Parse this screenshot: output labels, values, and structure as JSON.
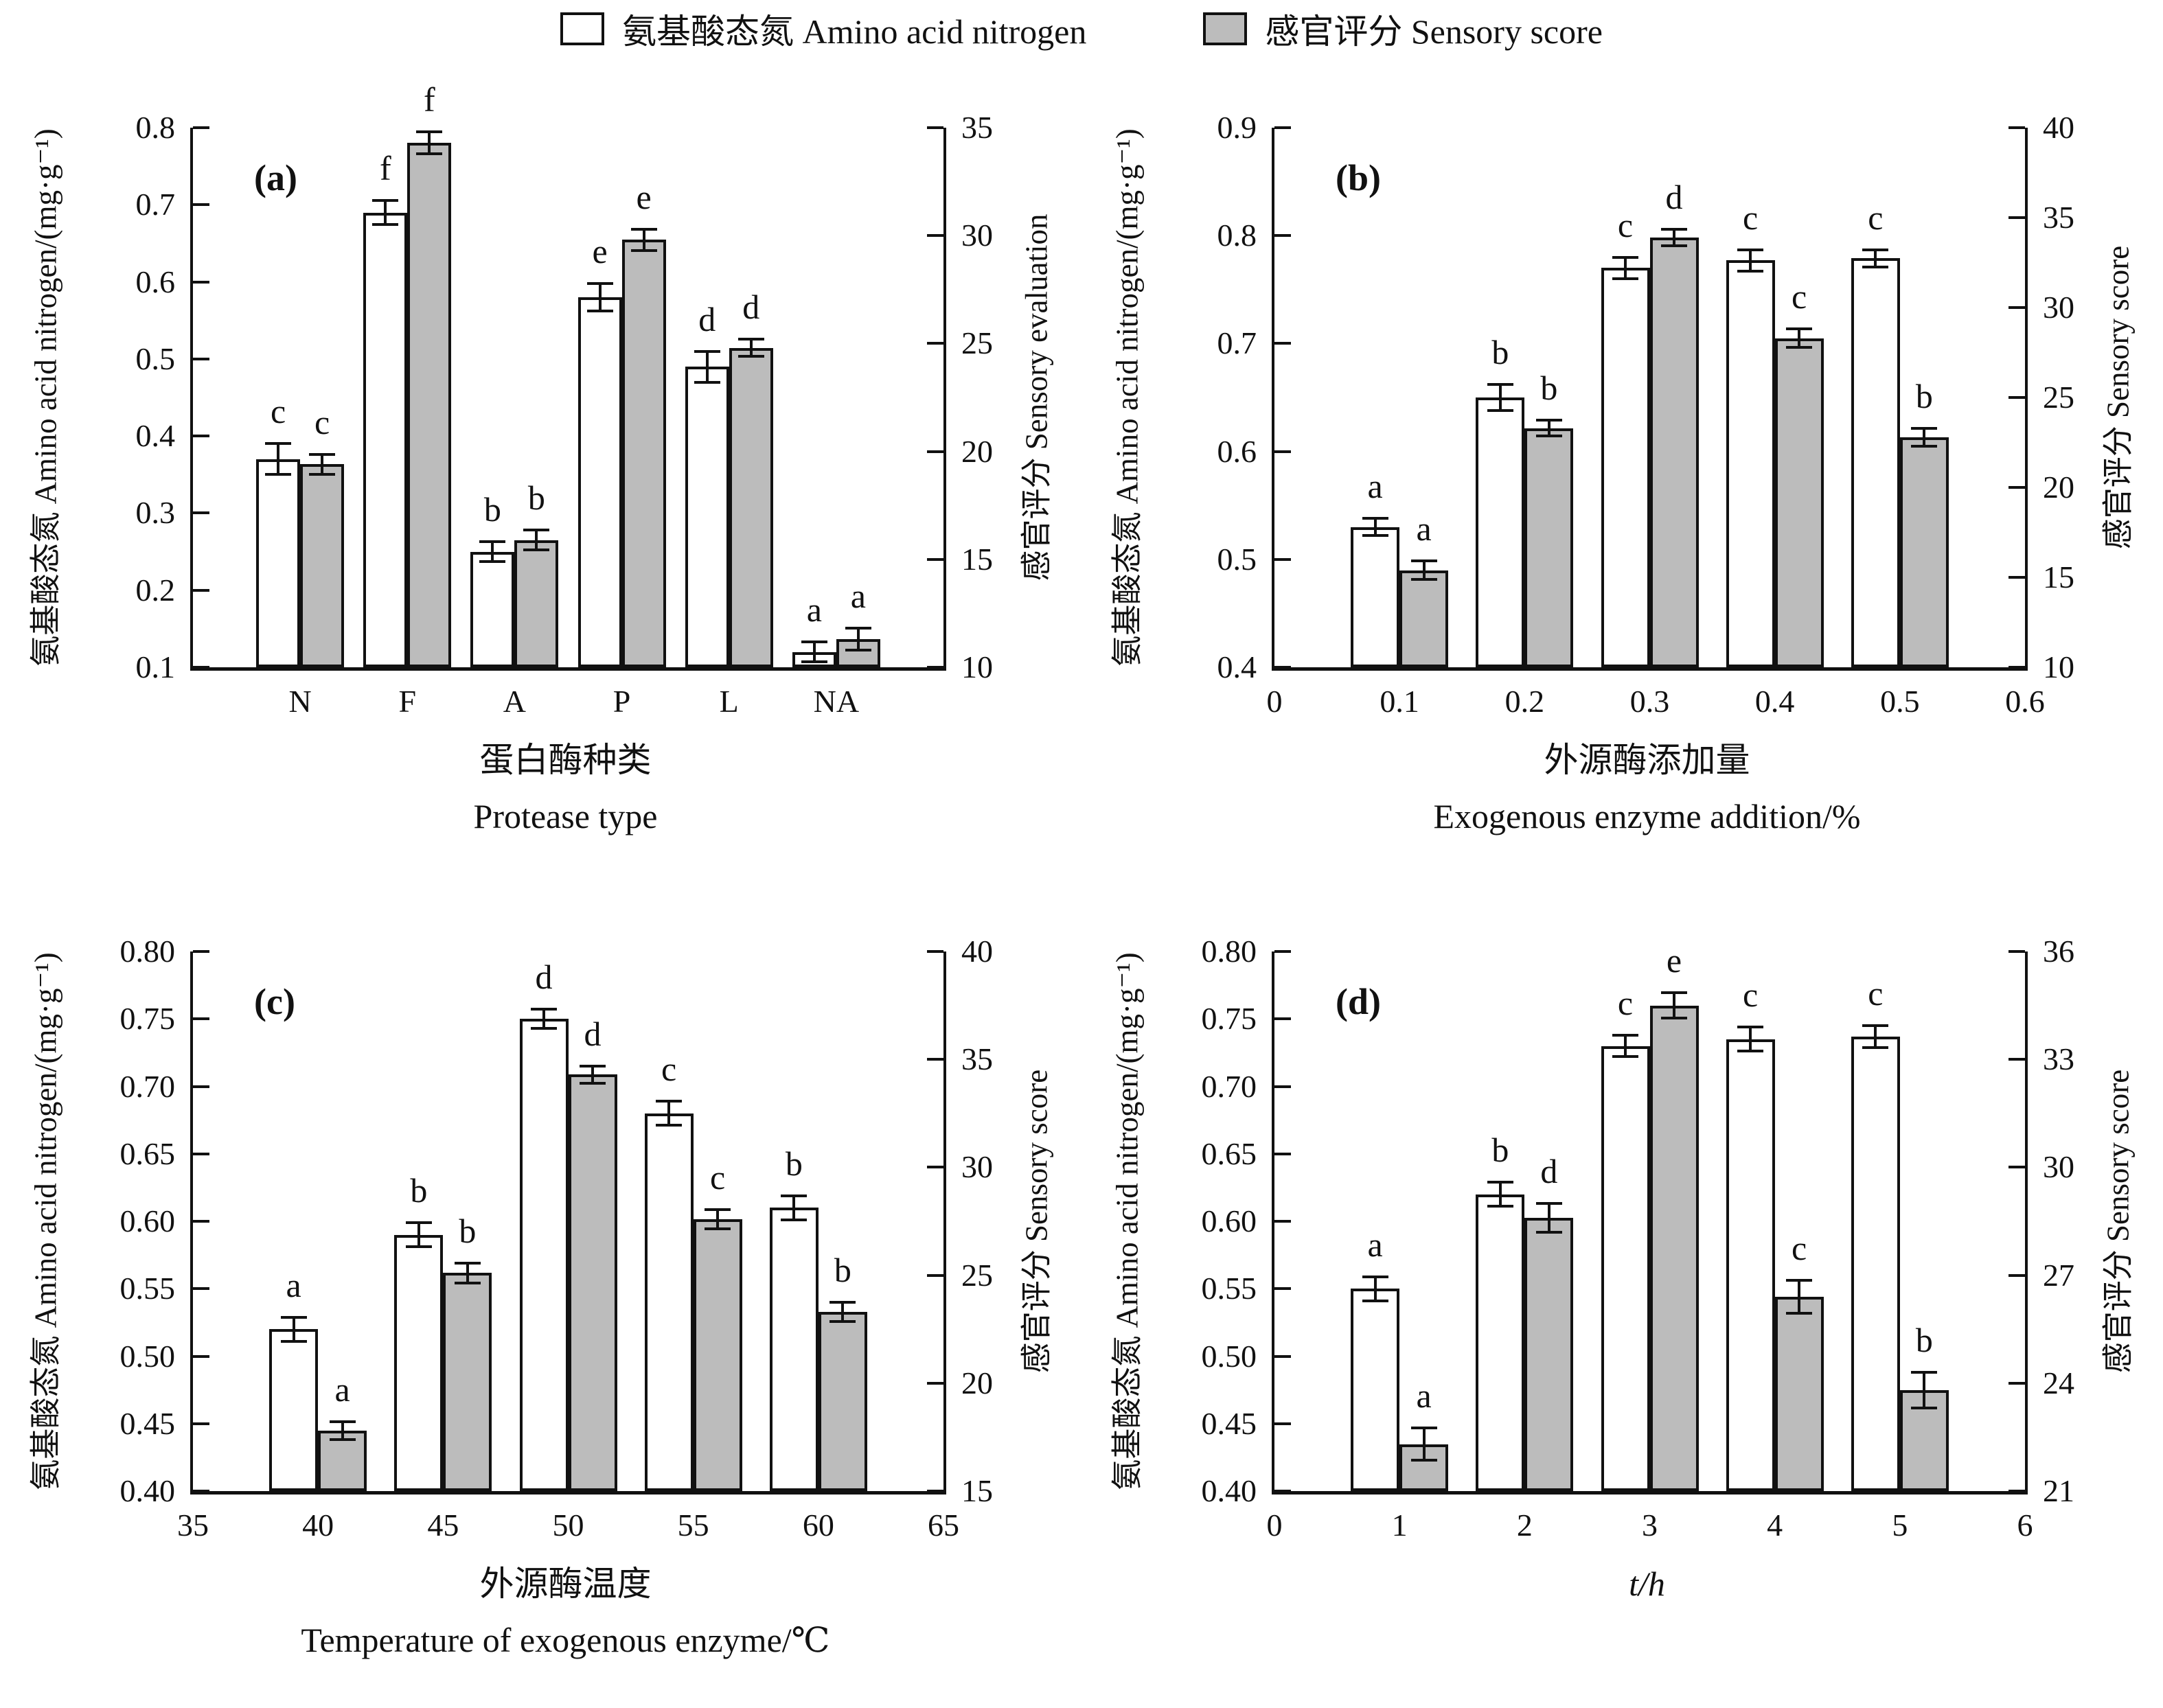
{
  "figure": {
    "legend": {
      "items": [
        {
          "label": "氨基酸态氮 Amino acid nitrogen",
          "swatch": "white"
        },
        {
          "label": "感官评分 Sensory score",
          "swatch": "gray"
        }
      ]
    },
    "colors": {
      "white": "#ffffff",
      "gray": "#bcbcbc",
      "ink": "#111111"
    }
  },
  "chart_data": [
    {
      "panel_label": "(a)",
      "type": "bar",
      "x_axis": {
        "mode": "category",
        "title_zh": "蛋白酶种类",
        "title_en": "Protease type",
        "categories": [
          "N",
          "F",
          "A",
          "P",
          "L",
          "NA"
        ],
        "min": 0,
        "max": 7,
        "bar_positions": [
          1,
          2,
          3,
          4,
          5,
          6
        ]
      },
      "left_axis": {
        "title": "氨基酸态氮 Amino acid nitrogen/(mg·g⁻¹)",
        "min": 0.1,
        "max": 0.8,
        "tick_values": [
          0.1,
          0.2,
          0.3,
          0.4,
          0.5,
          0.6,
          0.7,
          0.8
        ],
        "tick_labels": [
          "0.1",
          "0.2",
          "0.3",
          "0.4",
          "0.5",
          "0.6",
          "0.7",
          "0.8"
        ]
      },
      "right_axis": {
        "title": "感官评分 Sensory evaluation",
        "min": 10,
        "max": 35,
        "tick_values": [
          10,
          15,
          20,
          25,
          30,
          35
        ],
        "tick_labels": [
          "10",
          "15",
          "20",
          "25",
          "30",
          "35"
        ]
      },
      "series": [
        {
          "name": "Amino acid nitrogen",
          "axis": "left",
          "fill": "white",
          "values": [
            0.37,
            0.69,
            0.25,
            0.58,
            0.49,
            0.12
          ],
          "errors": [
            0.02,
            0.016,
            0.013,
            0.018,
            0.02,
            0.013
          ],
          "letters": [
            "c",
            "f",
            "b",
            "e",
            "d",
            "a"
          ]
        },
        {
          "name": "Sensory score",
          "axis": "right",
          "fill": "gray",
          "values": [
            19.4,
            34.3,
            15.9,
            29.8,
            24.8,
            11.3
          ],
          "errors": [
            0.45,
            0.5,
            0.45,
            0.5,
            0.4,
            0.5
          ],
          "letters": [
            "c",
            "f",
            "b",
            "e",
            "d",
            "a"
          ]
        }
      ]
    },
    {
      "panel_label": "(b)",
      "type": "bar",
      "x_axis": {
        "mode": "numeric",
        "title_zh": "外源酶添加量",
        "title_en": "Exogenous enzyme addition/%",
        "min": 0,
        "max": 0.6,
        "tick_values": [
          0,
          0.1,
          0.2,
          0.3,
          0.4,
          0.5,
          0.6
        ],
        "tick_labels": [
          "0",
          "0.1",
          "0.2",
          "0.3",
          "0.4",
          "0.5",
          "0.6"
        ],
        "bar_positions": [
          0.1,
          0.2,
          0.3,
          0.4,
          0.5
        ]
      },
      "left_axis": {
        "title": "氨基酸态氮 Amino acid nitrogen/(mg·g⁻¹)",
        "min": 0.4,
        "max": 0.9,
        "tick_values": [
          0.4,
          0.5,
          0.6,
          0.7,
          0.8,
          0.9
        ],
        "tick_labels": [
          "0.4",
          "0.5",
          "0.6",
          "0.7",
          "0.8",
          "0.9"
        ]
      },
      "right_axis": {
        "title": "感官评分 Sensory score",
        "min": 10,
        "max": 40,
        "tick_values": [
          10,
          15,
          20,
          25,
          30,
          35,
          40
        ],
        "tick_labels": [
          "10",
          "15",
          "20",
          "25",
          "30",
          "35",
          "40"
        ]
      },
      "series": [
        {
          "name": "Amino acid nitrogen",
          "axis": "left",
          "fill": "white",
          "values": [
            0.53,
            0.65,
            0.77,
            0.777,
            0.779
          ],
          "errors": [
            0.008,
            0.012,
            0.01,
            0.01,
            0.008
          ],
          "letters": [
            "a",
            "b",
            "c",
            "c",
            "c"
          ]
        },
        {
          "name": "Sensory score",
          "axis": "right",
          "fill": "gray",
          "values": [
            15.4,
            23.3,
            33.9,
            28.3,
            22.8
          ],
          "errors": [
            0.5,
            0.45,
            0.45,
            0.5,
            0.5
          ],
          "letters": [
            "a",
            "b",
            "d",
            "c",
            "b"
          ]
        }
      ]
    },
    {
      "panel_label": "(c)",
      "type": "bar",
      "x_axis": {
        "mode": "numeric",
        "title_zh": "外源酶温度",
        "title_en": "Temperature of exogenous enzyme/℃",
        "min": 35,
        "max": 65,
        "tick_values": [
          35,
          40,
          45,
          50,
          55,
          60,
          65
        ],
        "tick_labels": [
          "35",
          "40",
          "45",
          "50",
          "55",
          "60",
          "65"
        ],
        "bar_positions": [
          40,
          45,
          50,
          55,
          60
        ]
      },
      "left_axis": {
        "title": "氨基酸态氮 Amino acid nitrogen/(mg·g⁻¹)",
        "min": 0.4,
        "max": 0.8,
        "tick_values": [
          0.4,
          0.45,
          0.5,
          0.55,
          0.6,
          0.65,
          0.7,
          0.75,
          0.8
        ],
        "tick_labels": [
          "0.40",
          "0.45",
          "0.50",
          "0.55",
          "0.60",
          "0.65",
          "0.70",
          "0.75",
          "0.80"
        ]
      },
      "right_axis": {
        "title": "感官评分 Sensory score",
        "min": 15,
        "max": 40,
        "tick_values": [
          15,
          20,
          25,
          30,
          35,
          40
        ],
        "tick_labels": [
          "15",
          "20",
          "25",
          "30",
          "35",
          "40"
        ]
      },
      "series": [
        {
          "name": "Amino acid nitrogen",
          "axis": "left",
          "fill": "white",
          "values": [
            0.52,
            0.59,
            0.75,
            0.68,
            0.61
          ],
          "errors": [
            0.009,
            0.009,
            0.007,
            0.009,
            0.009
          ],
          "letters": [
            "a",
            "b",
            "d",
            "c",
            "b"
          ]
        },
        {
          "name": "Sensory score",
          "axis": "right",
          "fill": "gray",
          "values": [
            17.8,
            25.1,
            34.3,
            27.6,
            23.3
          ],
          "errors": [
            0.4,
            0.45,
            0.4,
            0.45,
            0.45
          ],
          "letters": [
            "a",
            "b",
            "d",
            "c",
            "b"
          ]
        }
      ]
    },
    {
      "panel_label": "(d)",
      "type": "bar",
      "x_axis": {
        "mode": "numeric",
        "title_zh": "",
        "title_en": "t/h",
        "italic": true,
        "min": 0,
        "max": 6,
        "tick_values": [
          0,
          1,
          2,
          3,
          4,
          5,
          6
        ],
        "tick_labels": [
          "0",
          "1",
          "2",
          "3",
          "4",
          "5",
          "6"
        ],
        "bar_positions": [
          1,
          2,
          3,
          4,
          5
        ]
      },
      "left_axis": {
        "title": "氨基酸态氮 Amino acid nitrogen/(mg·g⁻¹)",
        "min": 0.4,
        "max": 0.8,
        "tick_values": [
          0.4,
          0.45,
          0.5,
          0.55,
          0.6,
          0.65,
          0.7,
          0.75,
          0.8
        ],
        "tick_labels": [
          "0.40",
          "0.45",
          "0.50",
          "0.55",
          "0.60",
          "0.65",
          "0.70",
          "0.75",
          "0.80"
        ]
      },
      "right_axis": {
        "title": "感官评分 Sensory score",
        "min": 21,
        "max": 36,
        "tick_values": [
          21,
          24,
          27,
          30,
          33,
          36
        ],
        "tick_labels": [
          "21",
          "24",
          "27",
          "30",
          "33",
          "36"
        ]
      },
      "series": [
        {
          "name": "Amino acid nitrogen",
          "axis": "left",
          "fill": "white",
          "values": [
            0.55,
            0.62,
            0.73,
            0.735,
            0.737
          ],
          "errors": [
            0.009,
            0.009,
            0.008,
            0.009,
            0.008
          ],
          "letters": [
            "a",
            "b",
            "c",
            "c",
            "c"
          ]
        },
        {
          "name": "Sensory score",
          "axis": "right",
          "fill": "gray",
          "values": [
            22.3,
            28.6,
            34.5,
            26.4,
            23.8
          ],
          "errors": [
            0.45,
            0.4,
            0.35,
            0.45,
            0.5
          ],
          "letters": [
            "a",
            "d",
            "e",
            "c",
            "b"
          ]
        }
      ]
    }
  ]
}
